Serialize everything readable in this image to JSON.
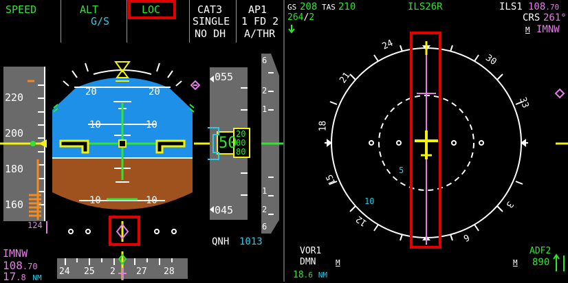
{
  "fma": {
    "speed_mode": "SPEED",
    "alt_mode": "ALT",
    "gs_mode": "G/S",
    "loc_mode": "LOC",
    "approach_cat": "CAT3",
    "approach_type": "SINGLE",
    "dh": "NO DH",
    "ap": "AP1",
    "fd": "1 FD 2",
    "athr": "A/THR"
  },
  "pfd": {
    "speed_ticks": [
      "220",
      "200",
      "180",
      "160"
    ],
    "speed_trend_value": "124",
    "pitch_labels": [
      "20",
      "20",
      "10",
      "10",
      "10",
      "10"
    ],
    "alt_top_label": "055",
    "alt_bottom_label": "045",
    "alt_current_big": "50",
    "alt_drum": [
      "20",
      "00",
      "80"
    ],
    "vs_scale_labels": [
      "6",
      "2",
      "1",
      "1",
      "2",
      "6"
    ],
    "qnh_label": "QNH",
    "qnh_value": "1013",
    "ils_ident": "IMNW",
    "ils_freq_main": "108",
    "ils_freq_dec": ".70",
    "ils_dme_main": "17",
    "ils_dme_dec": ".8",
    "ils_dme_unit": "NM",
    "heading_ticks": [
      "24",
      "25",
      "2",
      "27",
      "28"
    ]
  },
  "nd": {
    "gs_label": "GS",
    "gs_value": "208",
    "tas_label": "TAS",
    "tas_value": "210",
    "wind_dir": "264",
    "wind_sep": "/",
    "wind_speed": "2",
    "approach_name": "ILS26R",
    "ils1_label": "ILS1",
    "ils1_freq_main": "108",
    "ils1_freq_dec": ".70",
    "crs_label": "CRS",
    "crs_value": "261°",
    "ident_marker": "M",
    "ident": "IMNW",
    "compass_labels": [
      "24",
      "30",
      "33",
      "3",
      "6",
      "12",
      "15",
      "18",
      "21"
    ],
    "range_inner": "5",
    "range_outer": "10",
    "vor1_label": "VOR1",
    "vor1_ident": "DMN",
    "vor1_marker": "M",
    "vor1_dist_main": "18",
    "vor1_dist_dec": ".6",
    "vor1_dist_unit": "NM",
    "adf2_label": "ADF2",
    "adf2_marker": "M",
    "adf2_value": "890"
  },
  "colors": {
    "green": "#2ee62e",
    "cyan": "#2ecbe6",
    "magenta": "#e77ee7",
    "yellow": "#f2f20d",
    "sky": "#1e90e8",
    "ground": "#a0521e",
    "highlight": "#e00000"
  }
}
